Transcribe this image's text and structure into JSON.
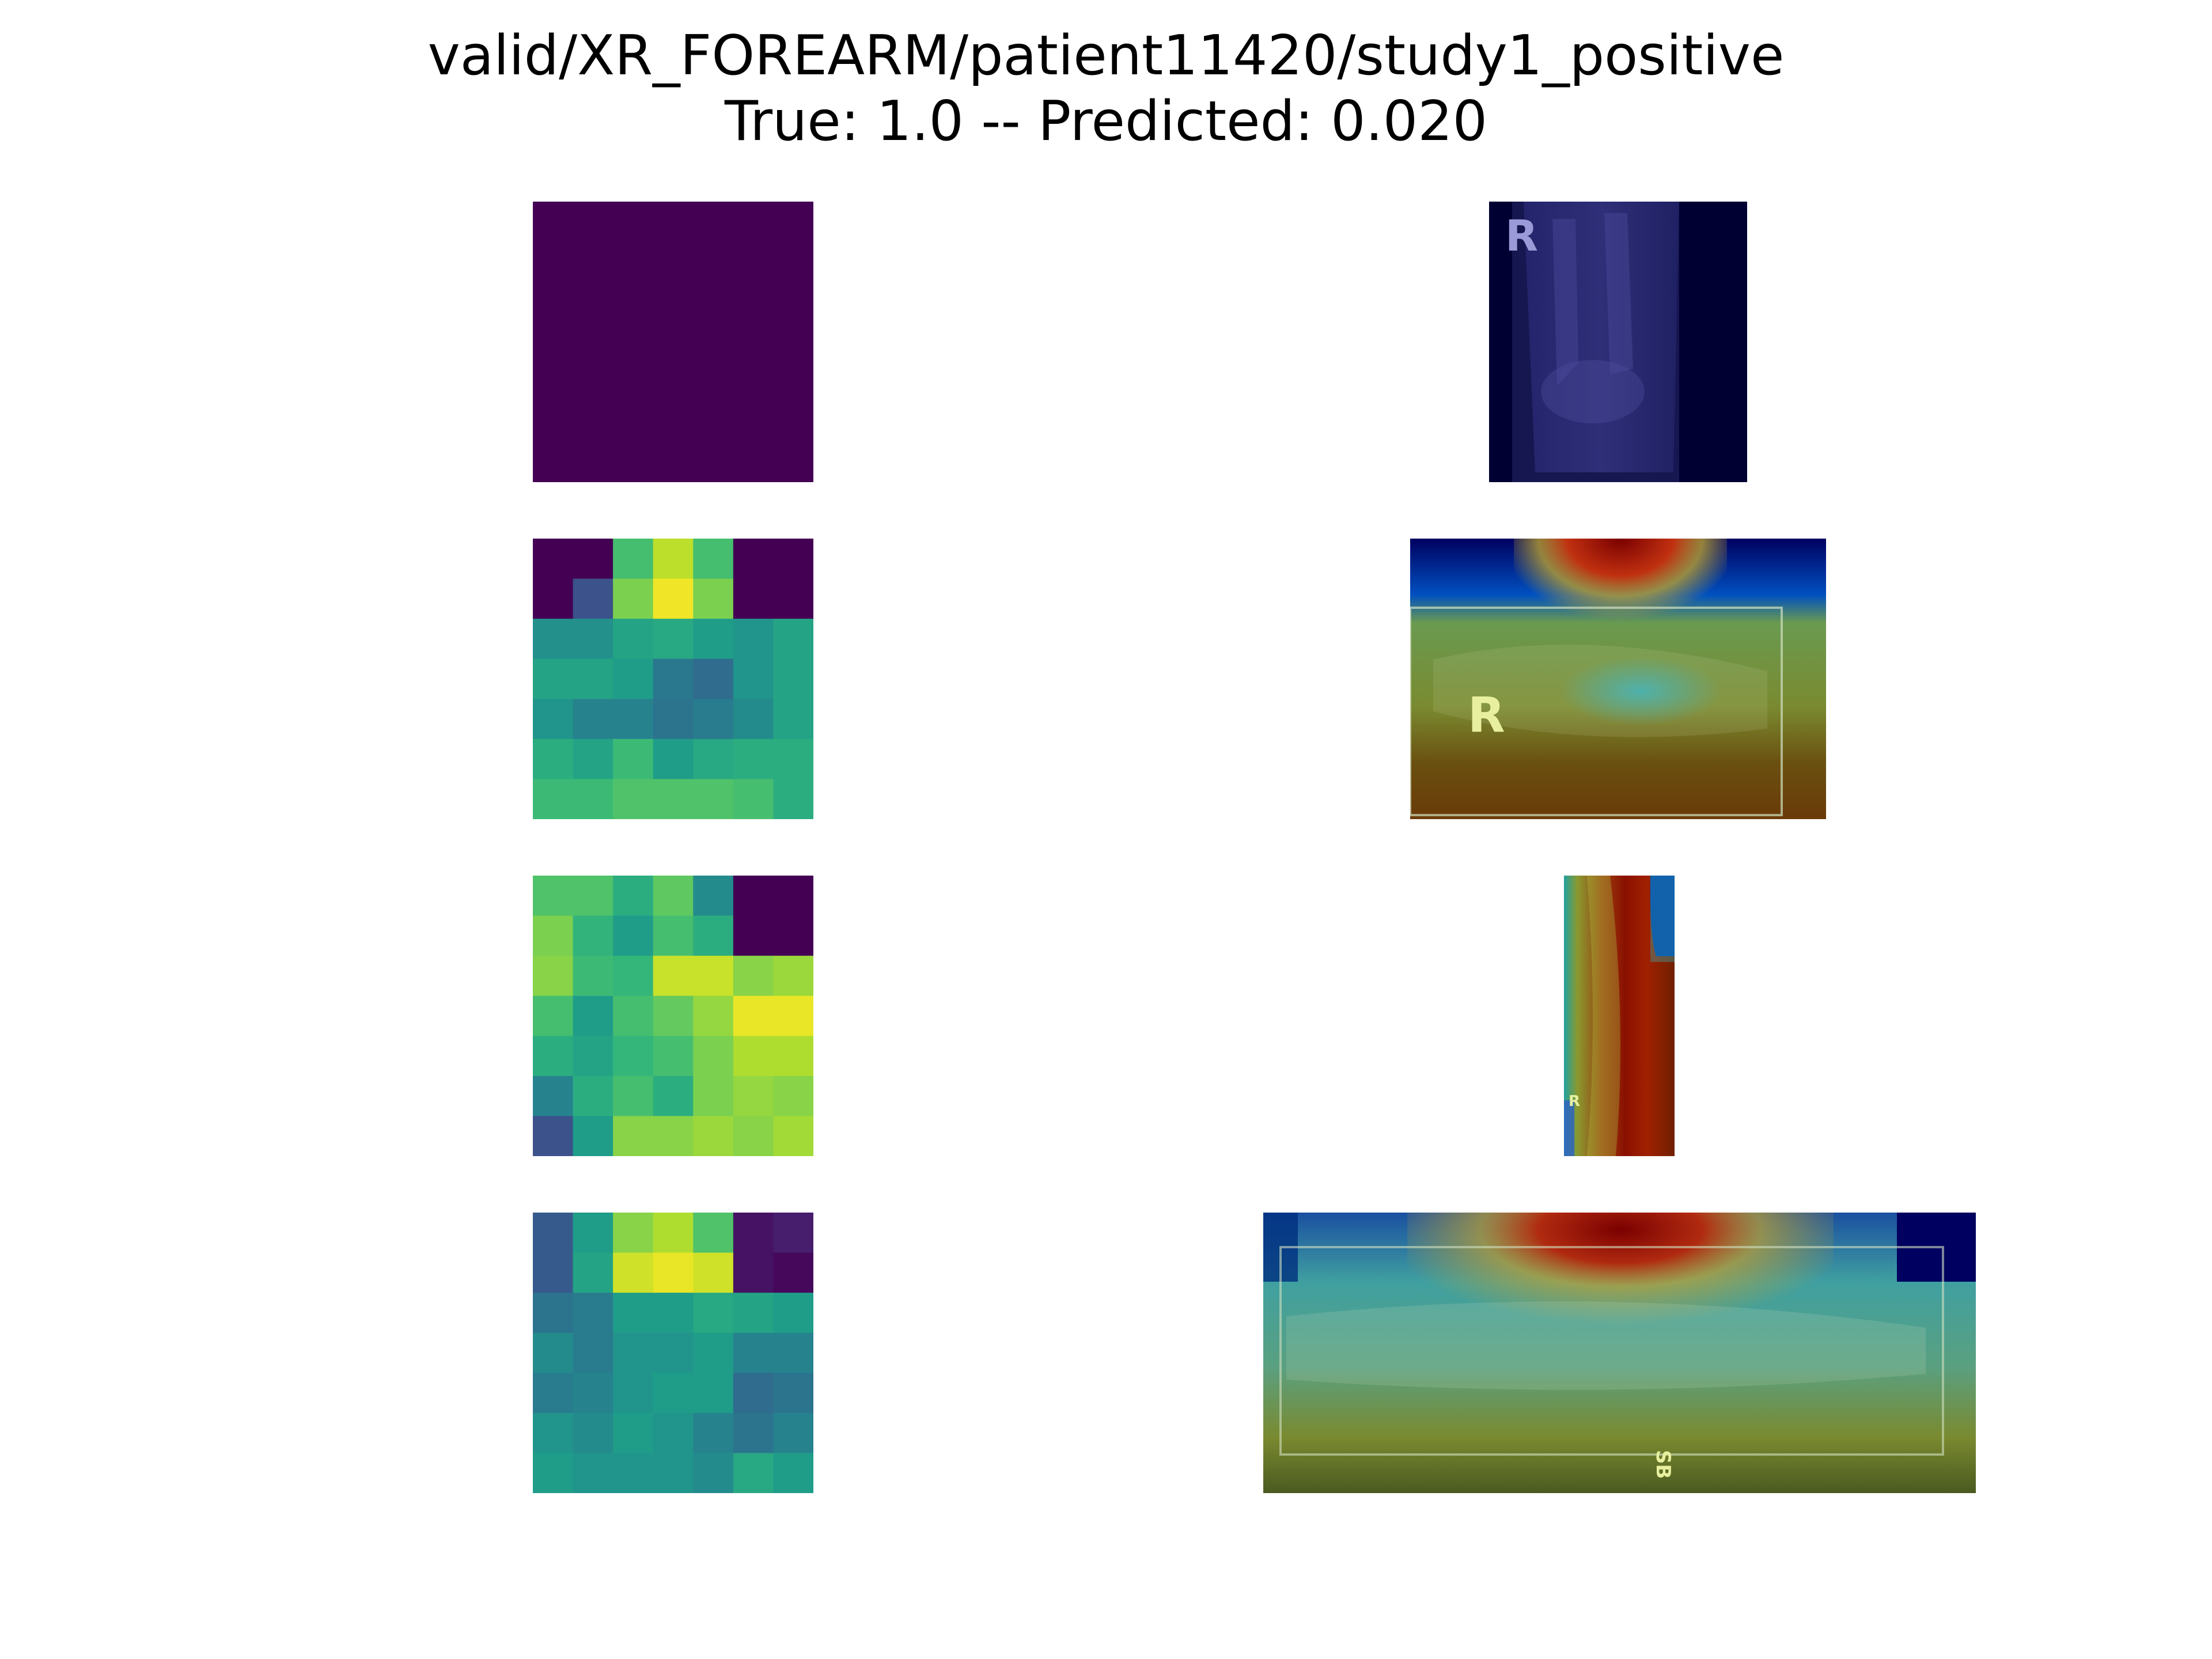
{
  "title": {
    "line1": "valid/XR_FOREARM/patient11420/study1_positive",
    "line2": "True: 1.0 -- Predicted: 0.020"
  },
  "colormap": "viridis",
  "overlay_colormap": "jet",
  "heatmaps": [
    {
      "rows": 7,
      "cols": 7,
      "values": [
        [
          0,
          0,
          0,
          0,
          0,
          0,
          0
        ],
        [
          0,
          0,
          0,
          0,
          0,
          0,
          0
        ],
        [
          0,
          0,
          0,
          0,
          0,
          0,
          0
        ],
        [
          0,
          0,
          0,
          0,
          0,
          0,
          0
        ],
        [
          0,
          0,
          0,
          0,
          0,
          0,
          0
        ],
        [
          0,
          0,
          0,
          0,
          0,
          0,
          0
        ],
        [
          0,
          0,
          0,
          0,
          0,
          0,
          0
        ]
      ]
    },
    {
      "rows": 7,
      "cols": 7,
      "values": [
        [
          0.0,
          0.0,
          0.7,
          0.9,
          0.7,
          0.0,
          0.0
        ],
        [
          0.0,
          0.25,
          0.8,
          0.98,
          0.8,
          0.0,
          0.0
        ],
        [
          0.5,
          0.5,
          0.58,
          0.6,
          0.55,
          0.52,
          0.58
        ],
        [
          0.58,
          0.58,
          0.55,
          0.4,
          0.35,
          0.52,
          0.58
        ],
        [
          0.52,
          0.45,
          0.45,
          0.38,
          0.42,
          0.48,
          0.58
        ],
        [
          0.62,
          0.58,
          0.68,
          0.55,
          0.6,
          0.62,
          0.62
        ],
        [
          0.68,
          0.68,
          0.72,
          0.72,
          0.72,
          0.7,
          0.62
        ]
      ]
    },
    {
      "rows": 7,
      "cols": 7,
      "values": [
        [
          0.72,
          0.72,
          0.62,
          0.75,
          0.48,
          0.0,
          0.0
        ],
        [
          0.8,
          0.65,
          0.55,
          0.7,
          0.62,
          0.0,
          0.0
        ],
        [
          0.82,
          0.68,
          0.66,
          0.92,
          0.92,
          0.82,
          0.85
        ],
        [
          0.7,
          0.55,
          0.7,
          0.76,
          0.84,
          0.97,
          0.97
        ],
        [
          0.62,
          0.58,
          0.66,
          0.7,
          0.8,
          0.88,
          0.88
        ],
        [
          0.45,
          0.62,
          0.7,
          0.62,
          0.8,
          0.84,
          0.82
        ],
        [
          0.25,
          0.55,
          0.82,
          0.82,
          0.85,
          0.82,
          0.86
        ]
      ]
    },
    {
      "rows": 7,
      "cols": 7,
      "values": [
        [
          0.28,
          0.55,
          0.82,
          0.88,
          0.72,
          0.05,
          0.08
        ],
        [
          0.28,
          0.58,
          0.93,
          0.97,
          0.93,
          0.05,
          0.02
        ],
        [
          0.38,
          0.42,
          0.55,
          0.55,
          0.6,
          0.58,
          0.55
        ],
        [
          0.48,
          0.42,
          0.52,
          0.52,
          0.55,
          0.45,
          0.45
        ],
        [
          0.42,
          0.45,
          0.52,
          0.55,
          0.55,
          0.35,
          0.38
        ],
        [
          0.52,
          0.48,
          0.55,
          0.52,
          0.45,
          0.38,
          0.45
        ],
        [
          0.55,
          0.52,
          0.52,
          0.52,
          0.48,
          0.6,
          0.55
        ]
      ]
    }
  ],
  "overlays": [
    {
      "marker": "R"
    },
    {
      "marker": "R"
    },
    {
      "marker": "R"
    },
    {
      "marker": "SB"
    }
  ]
}
